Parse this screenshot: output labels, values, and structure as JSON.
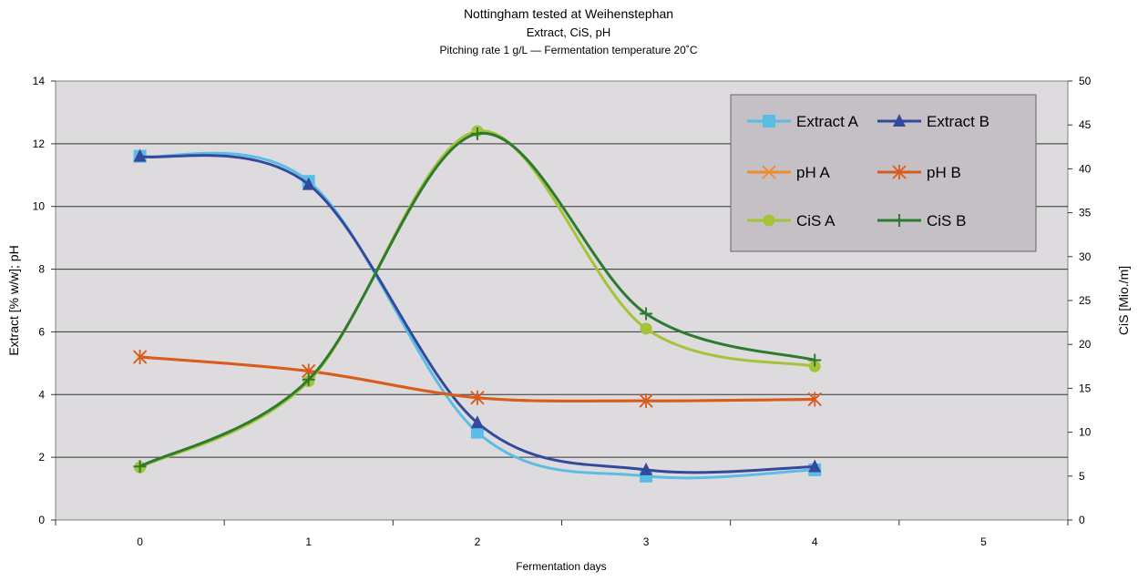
{
  "chart_data": {
    "type": "line",
    "title": "Nottingham tested at Weihenstephan",
    "subtitle": "Extract, CiS, pH",
    "subtitle2": "Pitching rate 1 g/L — Fermentation temperature 20˚C",
    "xlabel": "Fermentation days",
    "ylabel_left": "Extract [% w/w]; pH",
    "ylabel_right": "CiS [Mio./m]",
    "x_ticks": [
      "0",
      "1",
      "2",
      "3",
      "4",
      "5"
    ],
    "y_left_ticks": [
      "0",
      "2",
      "4",
      "6",
      "8",
      "10",
      "12",
      "14"
    ],
    "y_right_ticks": [
      "0",
      "5",
      "10",
      "15",
      "20",
      "25",
      "30",
      "35",
      "40",
      "45",
      "50"
    ],
    "xlim": [
      -0.5,
      5.5
    ],
    "ylim_left": [
      0,
      14
    ],
    "ylim_right": [
      0,
      50
    ],
    "grid": true,
    "legend_position": "top-right",
    "series": [
      {
        "name": "Extract A",
        "axis": "left",
        "color": "#5bbde6",
        "marker": "square",
        "x": [
          0,
          1,
          2,
          3,
          4
        ],
        "y": [
          11.6,
          10.8,
          2.8,
          1.4,
          1.6
        ]
      },
      {
        "name": "Extract B",
        "axis": "left",
        "color": "#334a9c",
        "marker": "triangle",
        "x": [
          0,
          1,
          2,
          3,
          4
        ],
        "y": [
          11.6,
          10.7,
          3.1,
          1.6,
          1.7
        ]
      },
      {
        "name": "pH A",
        "axis": "left",
        "color": "#f28a2e",
        "marker": "x",
        "x": [
          0,
          1,
          2,
          3,
          4
        ],
        "y": [
          5.2,
          4.75,
          3.9,
          3.8,
          3.85
        ]
      },
      {
        "name": "pH B",
        "axis": "left",
        "color": "#d95b1e",
        "marker": "star",
        "x": [
          0,
          1,
          2,
          3,
          4
        ],
        "y": [
          5.2,
          4.75,
          3.9,
          3.8,
          3.85
        ]
      },
      {
        "name": "CiS A",
        "axis": "right",
        "color": "#a4c437",
        "marker": "circle",
        "x": [
          0,
          1,
          2,
          3,
          4
        ],
        "y": [
          6.0,
          15.8,
          44.3,
          21.8,
          17.5
        ]
      },
      {
        "name": "CiS B",
        "axis": "right",
        "color": "#2d7a30",
        "marker": "plus",
        "x": [
          0,
          1,
          2,
          3,
          4
        ],
        "y": [
          6.1,
          16.0,
          44.0,
          23.5,
          18.2
        ]
      }
    ]
  }
}
